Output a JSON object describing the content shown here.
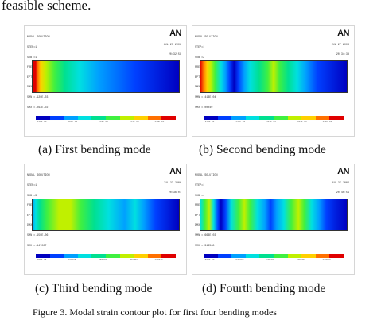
{
  "page_text": "feasible scheme.",
  "panels": [
    {
      "header": [
        "NODAL SOLUTION",
        "STEP=1",
        "SUB =1",
        "FREQ=.012273",
        "EPTOEQV  (AVG)",
        "DMX =.774E-02",
        "SMN =.120E-03",
        "SMX =.263E-02"
      ],
      "logo": "AN",
      "date": [
        "JUL 27 2006",
        "20:32:59"
      ],
      "legend_labels": [
        ".120E-03",
        ".410E-03",
        ".690E-03",
        ".979E-03",
        ".127E-02",
        ".155E-02",
        ".184E-02",
        ".212E-02",
        ".240E-02",
        ".263E-02"
      ],
      "caption": "(a) First bending mode"
    },
    {
      "header": [
        "NODAL SOLUTION",
        "STEP=1",
        "SUB =2",
        "FREQ=.065",
        "EPTOEQV  (AVG)",
        "DMX =.774E-02",
        "SMN =.413E-04",
        "SMX =.00049"
      ],
      "logo": "AN",
      "date": [
        "JUL 27 2006",
        "20:34:38"
      ],
      "legend_labels": [
        ".413E-04",
        ".913E-04",
        ".141E-03",
        ".191E-03",
        ".241E-03",
        ".291E-03",
        ".341E-03",
        ".391E-03",
        ".441E-03",
        ".00049"
      ],
      "caption": "(b) Second bending mode"
    },
    {
      "header": [
        "NODAL SOLUTION",
        "STEP=1",
        "SUB =3",
        "FREQ=.232973",
        "EPTOEQV  (AVG)",
        "DMX =.133E-02",
        "SMN =.159E-06",
        "SMX =.147087"
      ],
      "logo": "AN",
      "date": [
        "JUL 27 2006",
        "20:36:01"
      ],
      "legend_labels": [
        ".159E-06",
        ".016343",
        ".032686",
        ".049029",
        ".065372",
        ".081715",
        ".098058",
        ".114401",
        ".130744",
        ".147087"
      ],
      "caption": "(c) Third bending mode"
    },
    {
      "header": [
        "NODAL SOLUTION",
        "STEP=1",
        "SUB =4",
        "FREQ=.417",
        "EPTOEQV  (AVG)",
        "DMX =.744872",
        "SMN =.663E-03",
        "SMX =.313568"
      ],
      "logo": "AN",
      "date": [
        "JUL 27 2006",
        "20:40:51"
      ],
      "legend_labels": [
        ".663E-03",
        ".035430",
        ".070198",
        ".104965",
        ".139733",
        ".174501",
        ".209268",
        ".244036",
        ".278803",
        ".313568"
      ],
      "caption": "(d) Fourth bending mode"
    }
  ],
  "figure_caption": "Figure 3.    Modal strain contour plot for first four bending modes",
  "legend_colors": [
    "#0000c0",
    "#0040ff",
    "#00a0ff",
    "#00e0e0",
    "#00e090",
    "#40f040",
    "#c0f000",
    "#ffd000",
    "#ff7000",
    "#e00000"
  ]
}
